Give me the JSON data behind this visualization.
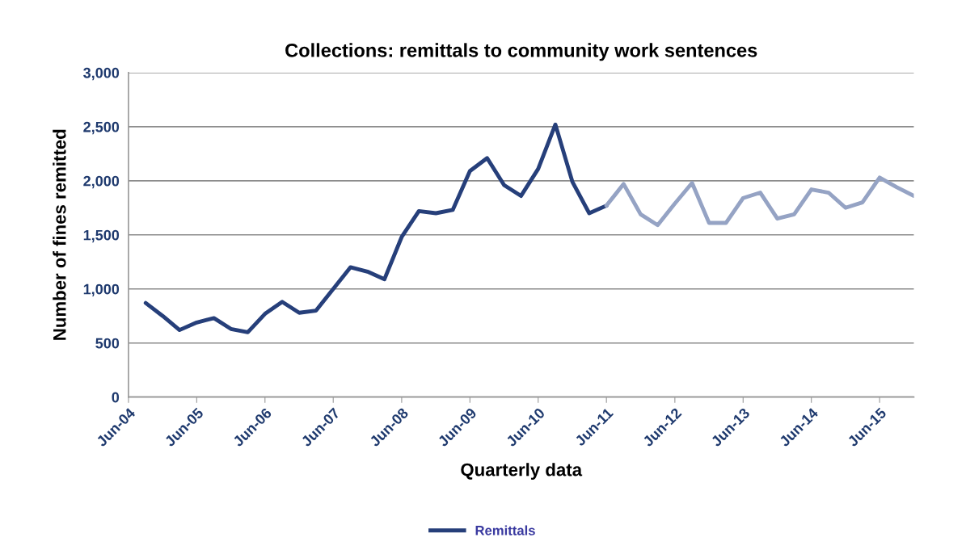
{
  "chart_data": {
    "type": "line",
    "title": "Collections: remittals to community work sentences",
    "xlabel": "Quarterly data",
    "ylabel": "Number of fines remitted",
    "series": [
      {
        "name": "Remittals",
        "color": "#263f7a",
        "x": [
          "2004-09",
          "2004-12",
          "2005-03",
          "2005-06",
          "2005-09",
          "2005-12",
          "2006-03",
          "2006-06",
          "2006-09",
          "2006-12",
          "2007-03",
          "2007-06",
          "2007-09",
          "2007-12",
          "2008-03",
          "2008-06",
          "2008-09",
          "2008-12",
          "2009-03",
          "2009-06",
          "2009-09",
          "2009-12",
          "2010-03",
          "2010-06",
          "2010-09",
          "2010-12",
          "2011-03",
          "2011-06"
        ],
        "values": [
          870,
          750,
          620,
          690,
          730,
          630,
          600,
          770,
          880,
          780,
          800,
          1000,
          1200,
          1160,
          1090,
          1480,
          1720,
          1700,
          1730,
          2090,
          2210,
          1960,
          1860,
          2110,
          2520,
          1990,
          1700,
          1770
        ]
      },
      {
        "color": "#95a3c4",
        "x": [
          "2011-06",
          "2011-09",
          "2011-12",
          "2012-03",
          "2012-06",
          "2012-09",
          "2012-12",
          "2013-03",
          "2013-06",
          "2013-09",
          "2013-12",
          "2014-03",
          "2014-06",
          "2014-09",
          "2014-12",
          "2015-03",
          "2015-06",
          "2015-09",
          "2015-12"
        ],
        "values": [
          1770,
          1970,
          1690,
          1590,
          1790,
          1980,
          1610,
          1610,
          1840,
          1890,
          1650,
          1690,
          1920,
          1890,
          1750,
          1800,
          2030,
          1940,
          1860
        ]
      }
    ],
    "xlim": [
      "2004-06",
      "2015-12"
    ],
    "xticks": [
      {
        "value": "2004-06",
        "label": "Jun-04"
      },
      {
        "value": "2005-06",
        "label": "Jun-05"
      },
      {
        "value": "2006-06",
        "label": "Jun-06"
      },
      {
        "value": "2007-06",
        "label": "Jun-07"
      },
      {
        "value": "2008-06",
        "label": "Jun-08"
      },
      {
        "value": "2009-06",
        "label": "Jun-09"
      },
      {
        "value": "2010-06",
        "label": "Jun-10"
      },
      {
        "value": "2011-06",
        "label": "Jun-11"
      },
      {
        "value": "2012-06",
        "label": "Jun-12"
      },
      {
        "value": "2013-06",
        "label": "Jun-13"
      },
      {
        "value": "2014-06",
        "label": "Jun-14"
      },
      {
        "value": "2015-06",
        "label": "Jun-15"
      }
    ],
    "ylim": [
      0,
      3000
    ],
    "yticks": [
      {
        "value": 0,
        "label": "0"
      },
      {
        "value": 500,
        "label": "500"
      },
      {
        "value": 1000,
        "label": "1,000"
      },
      {
        "value": 1500,
        "label": "1,500"
      },
      {
        "value": 2000,
        "label": "2,000"
      },
      {
        "value": 2500,
        "label": "2,500"
      },
      {
        "value": 3000,
        "label": "3,000"
      }
    ],
    "grid": "y",
    "legend": "bottom",
    "marker": "none",
    "line_style": "solid"
  }
}
